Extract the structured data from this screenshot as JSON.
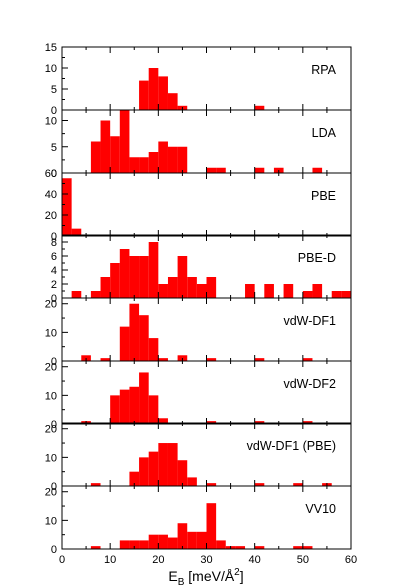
{
  "chart_data": {
    "type": "bar",
    "bin_width": 2,
    "xlim": [
      0,
      60
    ],
    "x_ticks": [
      "0",
      "10",
      "20",
      "30",
      "40",
      "50",
      "60"
    ],
    "xlabel": {
      "main": "E",
      "sub": "B",
      "units": "[meV/Å",
      "sup": "2",
      "close": "]"
    },
    "bar_color": "#ff0000",
    "panels": [
      {
        "name": "RPA",
        "ylim": [
          0,
          15
        ],
        "yticks": [
          "0",
          "5",
          "10",
          "15"
        ],
        "bins": [
          [
            16,
            7
          ],
          [
            18,
            10
          ],
          [
            20,
            8
          ],
          [
            22,
            4
          ],
          [
            24,
            1
          ],
          [
            40,
            1
          ]
        ]
      },
      {
        "name": "LDA",
        "ylim": [
          0,
          12
        ],
        "yticks": [
          "0",
          "5",
          "10"
        ],
        "bins": [
          [
            6,
            6
          ],
          [
            8,
            10
          ],
          [
            10,
            7
          ],
          [
            12,
            12
          ],
          [
            14,
            3
          ],
          [
            16,
            3
          ],
          [
            18,
            4
          ],
          [
            20,
            6
          ],
          [
            22,
            5
          ],
          [
            24,
            5
          ],
          [
            30,
            1
          ],
          [
            32,
            1
          ],
          [
            40,
            1
          ],
          [
            44,
            1
          ],
          [
            52,
            1
          ]
        ]
      },
      {
        "name": "PBE",
        "ylim": [
          0,
          60
        ],
        "yticks": [
          "0",
          "20",
          "40",
          "60"
        ],
        "bins": [
          [
            0,
            55
          ],
          [
            2,
            7
          ],
          [
            4,
            1
          ],
          [
            8,
            1
          ],
          [
            14,
            1
          ],
          [
            18,
            1
          ],
          [
            22,
            1
          ],
          [
            24,
            1
          ],
          [
            30,
            1
          ],
          [
            40,
            1
          ]
        ]
      },
      {
        "name": "PBE-D",
        "ylim": [
          0,
          9
        ],
        "yticks": [
          "0",
          "2",
          "4",
          "6",
          "8"
        ],
        "bins": [
          [
            2,
            1
          ],
          [
            6,
            1
          ],
          [
            8,
            3
          ],
          [
            10,
            5
          ],
          [
            12,
            7
          ],
          [
            14,
            6
          ],
          [
            16,
            6
          ],
          [
            18,
            8
          ],
          [
            20,
            2
          ],
          [
            22,
            3
          ],
          [
            24,
            6
          ],
          [
            26,
            3
          ],
          [
            28,
            2
          ],
          [
            30,
            3
          ],
          [
            38,
            2
          ],
          [
            42,
            2
          ],
          [
            46,
            2
          ],
          [
            50,
            1
          ],
          [
            52,
            2
          ],
          [
            56,
            1
          ],
          [
            58,
            1
          ]
        ]
      },
      {
        "name": "vdW-DF1",
        "ylim": [
          0,
          22
        ],
        "yticks": [
          "0",
          "10",
          "20"
        ],
        "bins": [
          [
            4,
            2
          ],
          [
            8,
            1
          ],
          [
            12,
            12
          ],
          [
            14,
            20
          ],
          [
            16,
            16
          ],
          [
            18,
            8
          ],
          [
            20,
            1
          ],
          [
            24,
            2
          ],
          [
            30,
            1
          ],
          [
            40,
            1
          ],
          [
            50,
            1
          ]
        ]
      },
      {
        "name": "vdW-DF2",
        "ylim": [
          0,
          22
        ],
        "yticks": [
          "0",
          "10",
          "20"
        ],
        "bins": [
          [
            4,
            1
          ],
          [
            10,
            10
          ],
          [
            12,
            12
          ],
          [
            14,
            13
          ],
          [
            16,
            18
          ],
          [
            18,
            10
          ],
          [
            20,
            2
          ],
          [
            30,
            1
          ],
          [
            40,
            1
          ],
          [
            50,
            1
          ]
        ]
      },
      {
        "name": "vdW-DF1 (PBE)",
        "ylim": [
          0,
          22
        ],
        "yticks": [
          "0",
          "10",
          "20"
        ],
        "bins": [
          [
            6,
            1
          ],
          [
            14,
            5
          ],
          [
            16,
            10
          ],
          [
            18,
            12
          ],
          [
            20,
            15
          ],
          [
            22,
            15
          ],
          [
            24,
            9
          ],
          [
            26,
            3
          ],
          [
            30,
            1
          ],
          [
            40,
            1
          ],
          [
            48,
            1
          ],
          [
            54,
            1
          ]
        ]
      },
      {
        "name": "VV10",
        "ylim": [
          0,
          22
        ],
        "yticks": [
          "0",
          "10",
          "20"
        ],
        "bins": [
          [
            6,
            1
          ],
          [
            12,
            3
          ],
          [
            14,
            3
          ],
          [
            16,
            3
          ],
          [
            18,
            5
          ],
          [
            20,
            5
          ],
          [
            22,
            4
          ],
          [
            24,
            9
          ],
          [
            26,
            6
          ],
          [
            28,
            6
          ],
          [
            30,
            16
          ],
          [
            32,
            3
          ],
          [
            34,
            1
          ],
          [
            36,
            1
          ],
          [
            40,
            1
          ],
          [
            48,
            1
          ],
          [
            50,
            1
          ]
        ]
      }
    ]
  }
}
